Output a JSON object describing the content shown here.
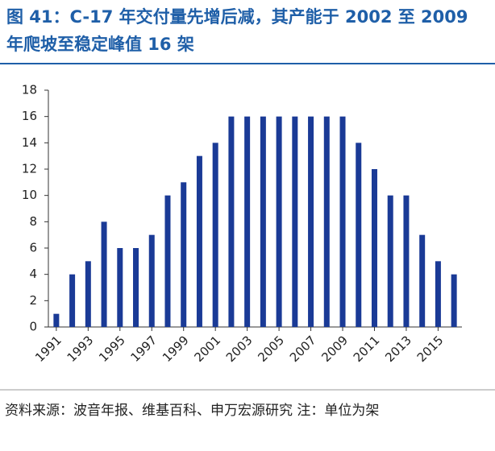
{
  "chart_data": {
    "type": "bar",
    "title": "图 41：C-17 年交付量先增后减，其产能于 2002 至 2009 年爬坡至稳定峰值 16 架",
    "source": "资料来源：波音年报、维基百科、申万宏源研究  注：单位为架",
    "categories": [
      "1991",
      null,
      "1993",
      null,
      "1995",
      null,
      "1997",
      null,
      "1999",
      null,
      "2001",
      null,
      "2003",
      null,
      "2005",
      null,
      "2007",
      null,
      "2009",
      null,
      "2011",
      null,
      "2013",
      null,
      "2015",
      null
    ],
    "values": [
      1,
      4,
      5,
      8,
      6,
      6,
      7,
      10,
      11,
      13,
      14,
      16,
      16,
      16,
      16,
      16,
      16,
      16,
      16,
      14,
      12,
      10,
      10,
      7,
      5,
      4
    ],
    "color": "#1a3a96",
    "ylim": [
      0,
      18
    ],
    "yticks": [
      0,
      2,
      4,
      6,
      8,
      10,
      12,
      14,
      16,
      18
    ]
  }
}
